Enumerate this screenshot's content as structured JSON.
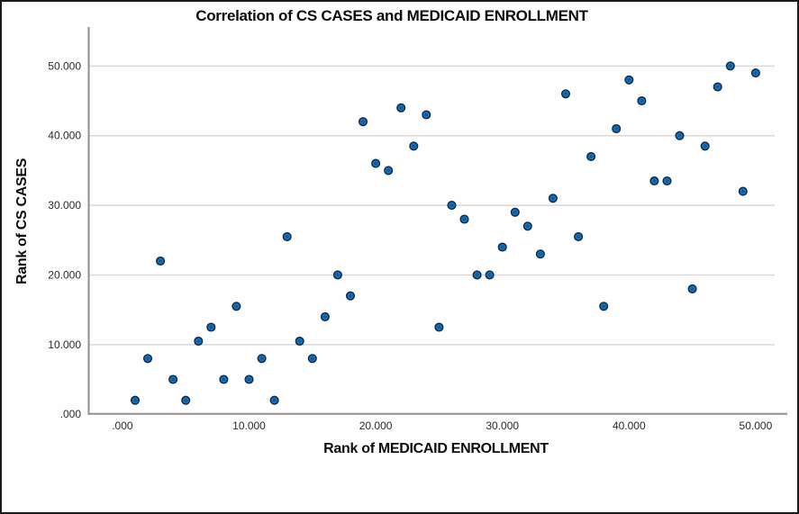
{
  "window": {
    "background": "#fefefe",
    "border_color": "#1a1a1a"
  },
  "chart_data": {
    "type": "scatter",
    "title": "Correlation of CS CASES and MEDICAID ENROLLMENT",
    "xlabel": "Rank of MEDICAID ENROLLMENT",
    "ylabel": "Rank of CS CASES",
    "xlim": [
      -2.7,
      52.4
    ],
    "ylim": [
      -0.2,
      55.6
    ],
    "x_ticks": [
      0,
      10,
      20,
      30,
      40,
      50
    ],
    "y_ticks": [
      0,
      10,
      20,
      30,
      40,
      50
    ],
    "x_tick_labels": [
      ".000",
      "10.000",
      "20.000",
      "30.000",
      "40.000",
      "50.000"
    ],
    "y_tick_labels": [
      ".000",
      "10.000",
      "20.000",
      "30.000",
      "40.000",
      "50.000"
    ],
    "grid": "horizontal-only",
    "legend": false,
    "gridline_color": "#d9d9d9",
    "axis_color": "#8f8f8f",
    "marker": {
      "shape": "circle",
      "fill": "#1d72b9",
      "core": "#0e4d86",
      "stroke": "#0a2c4d"
    },
    "points": [
      [
        1,
        2
      ],
      [
        2,
        8
      ],
      [
        3,
        22
      ],
      [
        4,
        5
      ],
      [
        5,
        2
      ],
      [
        6,
        10.5
      ],
      [
        7,
        12.5
      ],
      [
        8,
        5
      ],
      [
        9,
        15.5
      ],
      [
        10,
        5
      ],
      [
        11,
        8
      ],
      [
        12,
        2
      ],
      [
        13,
        25.5
      ],
      [
        14,
        10.5
      ],
      [
        15,
        8
      ],
      [
        16,
        14
      ],
      [
        17,
        20
      ],
      [
        18,
        17
      ],
      [
        19,
        42
      ],
      [
        20,
        36
      ],
      [
        21,
        35
      ],
      [
        22,
        44
      ],
      [
        23,
        38.5
      ],
      [
        24,
        43
      ],
      [
        25,
        12.5
      ],
      [
        26,
        30
      ],
      [
        27,
        28
      ],
      [
        28,
        20
      ],
      [
        29,
        20
      ],
      [
        30,
        24
      ],
      [
        31,
        29
      ],
      [
        32,
        27
      ],
      [
        33,
        23
      ],
      [
        34,
        31
      ],
      [
        35,
        46
      ],
      [
        36,
        25.5
      ],
      [
        37,
        37
      ],
      [
        38,
        15.5
      ],
      [
        39,
        41
      ],
      [
        40,
        48
      ],
      [
        41,
        45
      ],
      [
        42,
        33.5
      ],
      [
        43,
        33.5
      ],
      [
        44,
        40
      ],
      [
        45,
        18
      ],
      [
        46,
        38.5
      ],
      [
        47,
        47
      ],
      [
        48,
        50
      ],
      [
        49,
        32
      ],
      [
        50,
        49
      ]
    ]
  }
}
